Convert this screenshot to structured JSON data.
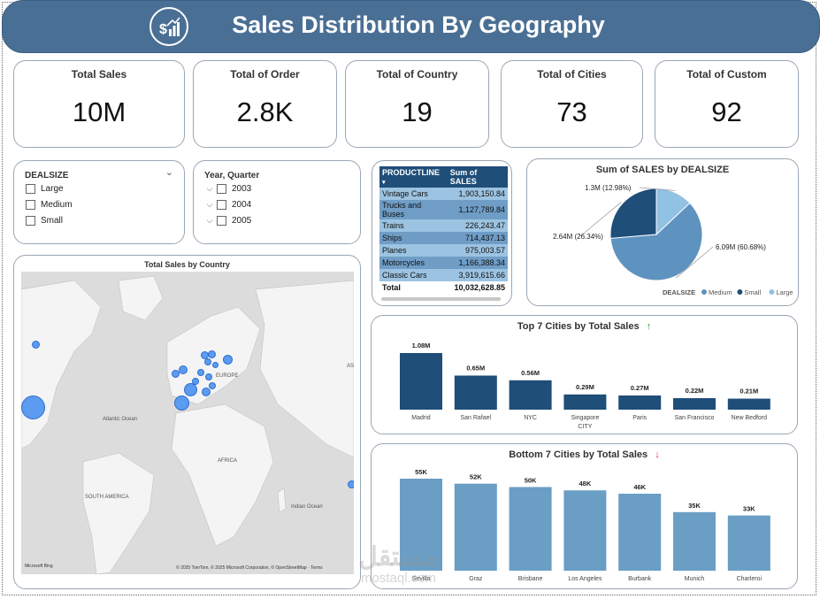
{
  "header": {
    "title": "Sales Distribution By Geography",
    "logo_icon": "sales-chart-icon"
  },
  "kpis": [
    {
      "label": "Total Sales",
      "value": "10M"
    },
    {
      "label": "Total of Order",
      "value": "2.8K"
    },
    {
      "label": "Total of Country",
      "value": "19"
    },
    {
      "label": "Total of Cities",
      "value": "73"
    },
    {
      "label": "Total of Custom",
      "value": "92"
    }
  ],
  "slicers": {
    "dealsize": {
      "title": "DEALSIZE",
      "items": [
        "Large",
        "Medium",
        "Small"
      ]
    },
    "year": {
      "title": "Year, Quarter",
      "items": [
        "2003",
        "2004",
        "2005"
      ]
    }
  },
  "productline_table": {
    "headers": [
      "PRODUCTLINE",
      "Sum of SALES"
    ],
    "rows": [
      [
        "Vintage Cars",
        "1,903,150.84"
      ],
      [
        "Trucks and Buses",
        "1,127,789.84"
      ],
      [
        "Trains",
        "226,243.47"
      ],
      [
        "Ships",
        "714,437.13"
      ],
      [
        "Planes",
        "975,003.57"
      ],
      [
        "Motorcycles",
        "1,166,388.34"
      ],
      [
        "Classic Cars",
        "3,919,615.66"
      ]
    ],
    "total_label": "Total",
    "total_value": "10,032,628.85"
  },
  "map": {
    "title": "Total Sales by Country",
    "labels": [
      "Atlantic Ocean",
      "EUROPE",
      "AFRICA",
      "SOUTH AMERICA",
      "Indian Ocean",
      "AS"
    ],
    "attribution": "© 2025 TomTom, © 2025 Microsoft Corporation, © OpenStreetMap · Terms",
    "provider": "Microsoft Bing"
  },
  "colors": {
    "header": "#4a6f94",
    "dark_bar": "#1f4e79",
    "light_bar": "#6a9ec5",
    "medium": "#5f93bf",
    "small": "#1f4e79",
    "large": "#91c1e3"
  },
  "chart_data": [
    {
      "type": "pie",
      "title": "Sum of SALES by DEALSIZE",
      "legend_title": "DEALSIZE",
      "categories": [
        "Medium",
        "Small",
        "Large"
      ],
      "values": [
        6.09,
        2.64,
        1.3
      ],
      "data_labels": [
        "6.09M (60.68%)",
        "2.64M (26.34%)",
        "1.3M (12.98%)"
      ],
      "legend": "bottom-right"
    },
    {
      "type": "bar",
      "title": "Top 7 Cities by Total Sales",
      "categories": [
        "Madrid",
        "San Rafael",
        "NYC",
        "Singapore CITY",
        "Paris",
        "San Francisco",
        "New Bedford"
      ],
      "category_lines": [
        [
          "Madrid"
        ],
        [
          "San Rafael"
        ],
        [
          "NYC"
        ],
        [
          "Singapore",
          "CITY"
        ],
        [
          "Paris"
        ],
        [
          "San Francisco"
        ],
        [
          "New Bedford"
        ]
      ],
      "values": [
        1.08,
        0.65,
        0.56,
        0.29,
        0.27,
        0.22,
        0.21
      ],
      "data_labels": [
        "1.08M",
        "0.65M",
        "0.56M",
        "0.29M",
        "0.27M",
        "0.22M",
        "0.21M"
      ],
      "ylim": [
        0,
        1.08
      ]
    },
    {
      "type": "bar",
      "title": "Bottom 7 Cities by Total Sales",
      "categories": [
        "Sevilla",
        "Graz",
        "Brisbane",
        "Los Angeles",
        "Burbank",
        "Munich",
        "Charleroi"
      ],
      "values": [
        55,
        52,
        50,
        48,
        46,
        35,
        33
      ],
      "data_labels": [
        "55K",
        "52K",
        "50K",
        "48K",
        "46K",
        "35K",
        "33K"
      ],
      "ylim": [
        0,
        55
      ]
    }
  ],
  "watermark": {
    "text": "مستقل",
    "sub": "mostaql.com"
  }
}
